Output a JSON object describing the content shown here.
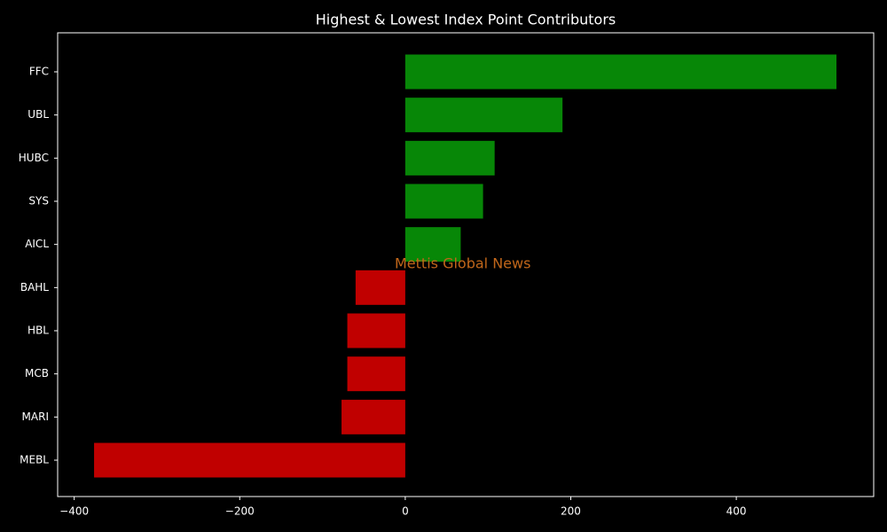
{
  "chart_data": {
    "type": "hbar",
    "title": "Highest & Lowest Index Point Contributors",
    "categories": [
      "FFC",
      "UBL",
      "HUBC",
      "SYS",
      "AICL",
      "BAHL",
      "HBL",
      "MCB",
      "MARI",
      "MEBL"
    ],
    "values": [
      521,
      190,
      108,
      94,
      67,
      -60,
      -70,
      -70,
      -77,
      -376
    ],
    "colors": [
      "#078707",
      "#078707",
      "#078707",
      "#078707",
      "#078707",
      "#c00000",
      "#c00000",
      "#c00000",
      "#c00000",
      "#c00000"
    ],
    "xlim": [
      -420,
      566
    ],
    "xticks": [
      {
        "value": -400,
        "label": "−400"
      },
      {
        "value": -200,
        "label": "−200"
      },
      0,
      200,
      400
    ],
    "annotation": "Mettis Global News",
    "annotation_color": "#c0661a"
  }
}
